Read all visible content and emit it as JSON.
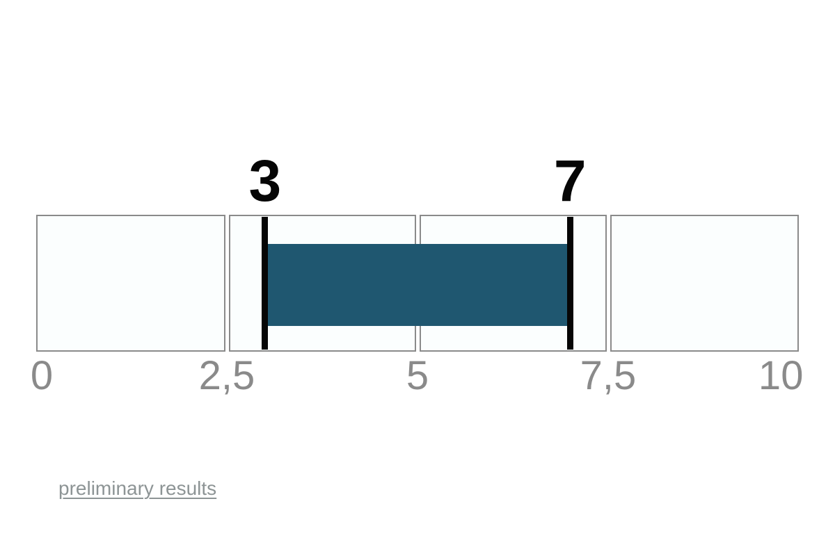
{
  "chart_data": {
    "type": "bar",
    "variant": "horizontal-range-interval",
    "title": "",
    "axis": {
      "min": 0,
      "max": 10,
      "tick_values": [
        0,
        2.5,
        5,
        7.5,
        10
      ],
      "tick_labels": [
        "0",
        "2,5",
        "5",
        "7,5",
        "10"
      ],
      "decimal_separator": ","
    },
    "segments": 4,
    "grid": "off",
    "legend": "none",
    "range": {
      "low": 3,
      "high": 7,
      "low_label": "3",
      "high_label": "7"
    },
    "colors": {
      "bar": "#1f5770",
      "marker": "#060606",
      "segment_fill": "#fbfefe",
      "segment_border": "#8a8a8a",
      "tick_label": "#8a8a8a",
      "link": "#8d9495",
      "page_background": "#ffffff"
    }
  },
  "footer": {
    "link_label": "preliminary results"
  }
}
